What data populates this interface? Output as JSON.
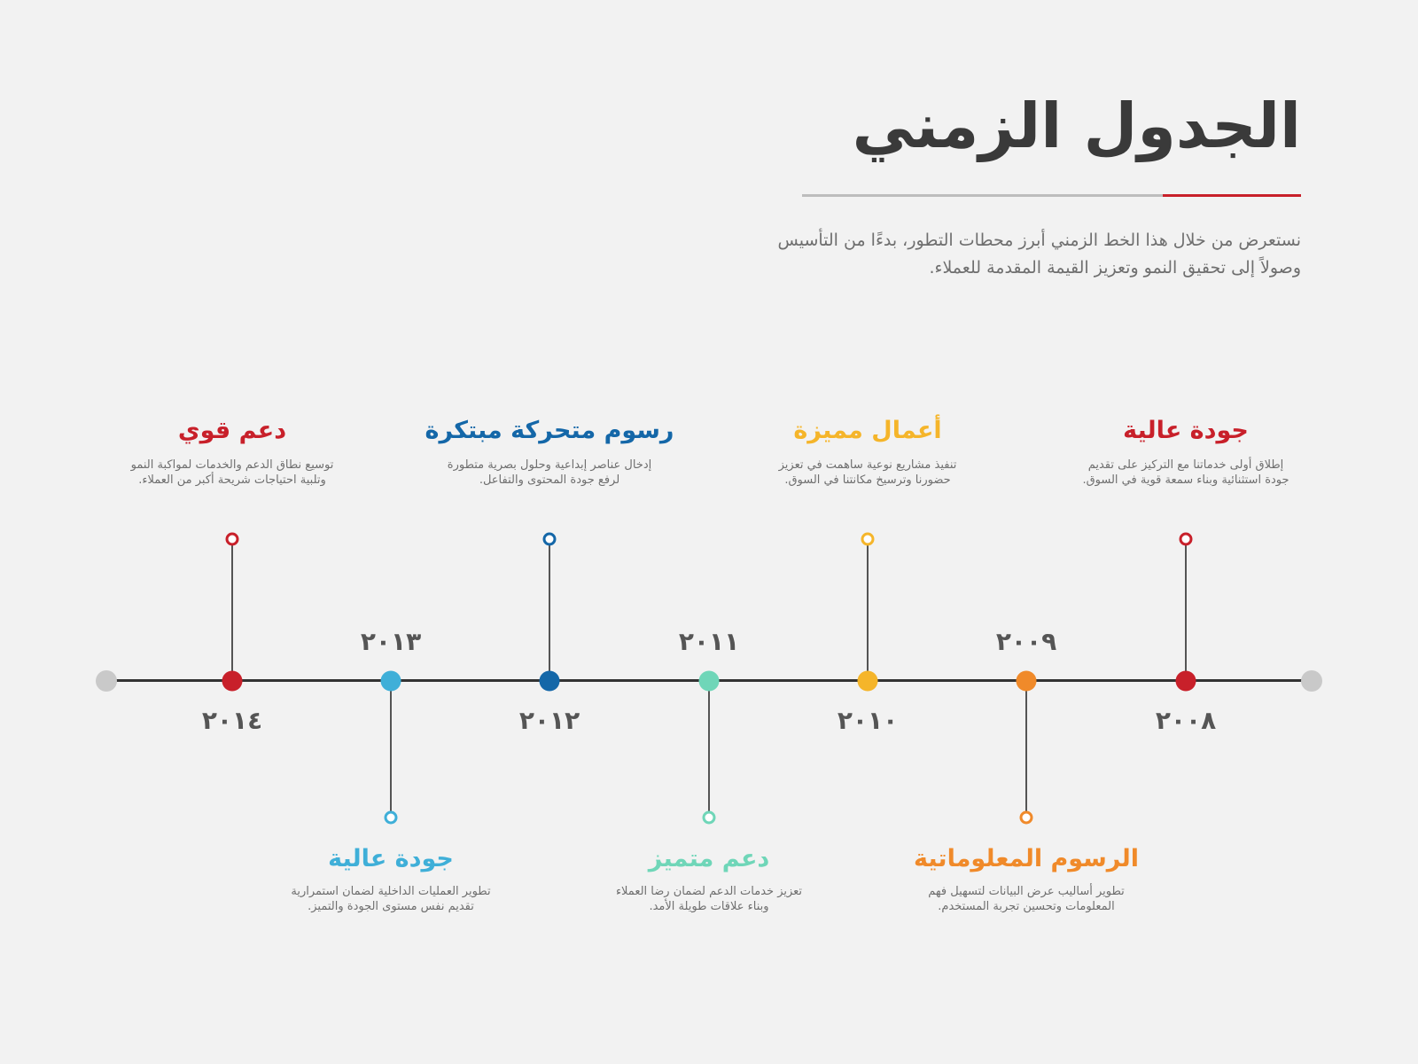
{
  "title": "الجدول الزمني",
  "intro": "نستعرض من خلال هذا الخط الزمني أبرز محطات التطور، بدءًا من التأسيس وصولاً إلى تحقيق النمو وتعزيز القيمة المقدمة للعملاء.",
  "colors": {
    "red": "#c8202a",
    "orange": "#f08a2a",
    "yellow": "#f5b52a",
    "mint": "#6fd6b8",
    "navy": "#1467a8",
    "sky": "#3fafd8",
    "axis": "#333333",
    "endcap": "#c9c9c9"
  },
  "milestones": [
    {
      "year": "٢٠٠٨",
      "title": "جودة عالية",
      "desc": "إطلاق أولى خدماتنا مع التركيز على تقديم جودة استثنائية وبناء سمعة قوية في السوق.",
      "color": "#c8202a",
      "side": "above"
    },
    {
      "year": "٢٠٠٩",
      "title": "الرسوم المعلوماتية",
      "desc": "تطوير أساليب عرض البيانات لتسهيل فهم المعلومات وتحسين تجربة المستخدم.",
      "color": "#f08a2a",
      "side": "below"
    },
    {
      "year": "٢٠١٠",
      "title": "أعمال مميزة",
      "desc": "تنفيذ مشاريع نوعية ساهمت في تعزيز حضورنا وترسيخ مكانتنا في السوق.",
      "color": "#f5b52a",
      "side": "above"
    },
    {
      "year": "٢٠١١",
      "title": "دعم متميز",
      "desc": "تعزيز خدمات الدعم لضمان رضا العملاء وبناء علاقات طويلة الأمد.",
      "color": "#6fd6b8",
      "side": "below"
    },
    {
      "year": "٢٠١٢",
      "title": "رسوم متحركة مبتكرة",
      "desc": "إدخال عناصر إبداعية وحلول بصرية متطورة لرفع جودة المحتوى والتفاعل.",
      "color": "#1467a8",
      "side": "above"
    },
    {
      "year": "٢٠١٣",
      "title": "جودة عالية",
      "desc": "تطوير العمليات الداخلية لضمان استمرارية تقديم نفس مستوى الجودة والتميز.",
      "color": "#3fafd8",
      "side": "below"
    },
    {
      "year": "٢٠١٤",
      "title": "دعم قوي",
      "desc": "توسيع نطاق الدعم والخدمات لمواكبة النمو وتلبية احتياجات شريحة أكبر من العملاء.",
      "color": "#c8202a",
      "side": "above"
    }
  ]
}
